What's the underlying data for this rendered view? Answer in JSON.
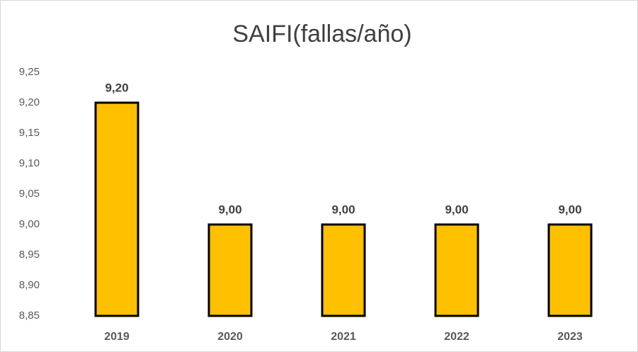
{
  "chart_data": {
    "type": "bar",
    "title": "SAIFI(fallas/año)",
    "categories": [
      "2019",
      "2020",
      "2021",
      "2022",
      "2023"
    ],
    "values": [
      9.2,
      9.0,
      9.0,
      9.0,
      9.0
    ],
    "value_labels": [
      "9,20",
      "9,00",
      "9,00",
      "9,00",
      "9,00"
    ],
    "color": "#ffc000",
    "ylim": [
      8.85,
      9.25
    ],
    "yticks": [
      {
        "value": 8.85,
        "label": "8,85"
      },
      {
        "value": 8.9,
        "label": "8,90"
      },
      {
        "value": 8.95,
        "label": "8,95"
      },
      {
        "value": 9.0,
        "label": "9,00"
      },
      {
        "value": 9.05,
        "label": "9,05"
      },
      {
        "value": 9.1,
        "label": "9,10"
      },
      {
        "value": 9.15,
        "label": "9,15"
      },
      {
        "value": 9.2,
        "label": "9,20"
      },
      {
        "value": 9.25,
        "label": "9,25"
      }
    ],
    "grid": false
  }
}
